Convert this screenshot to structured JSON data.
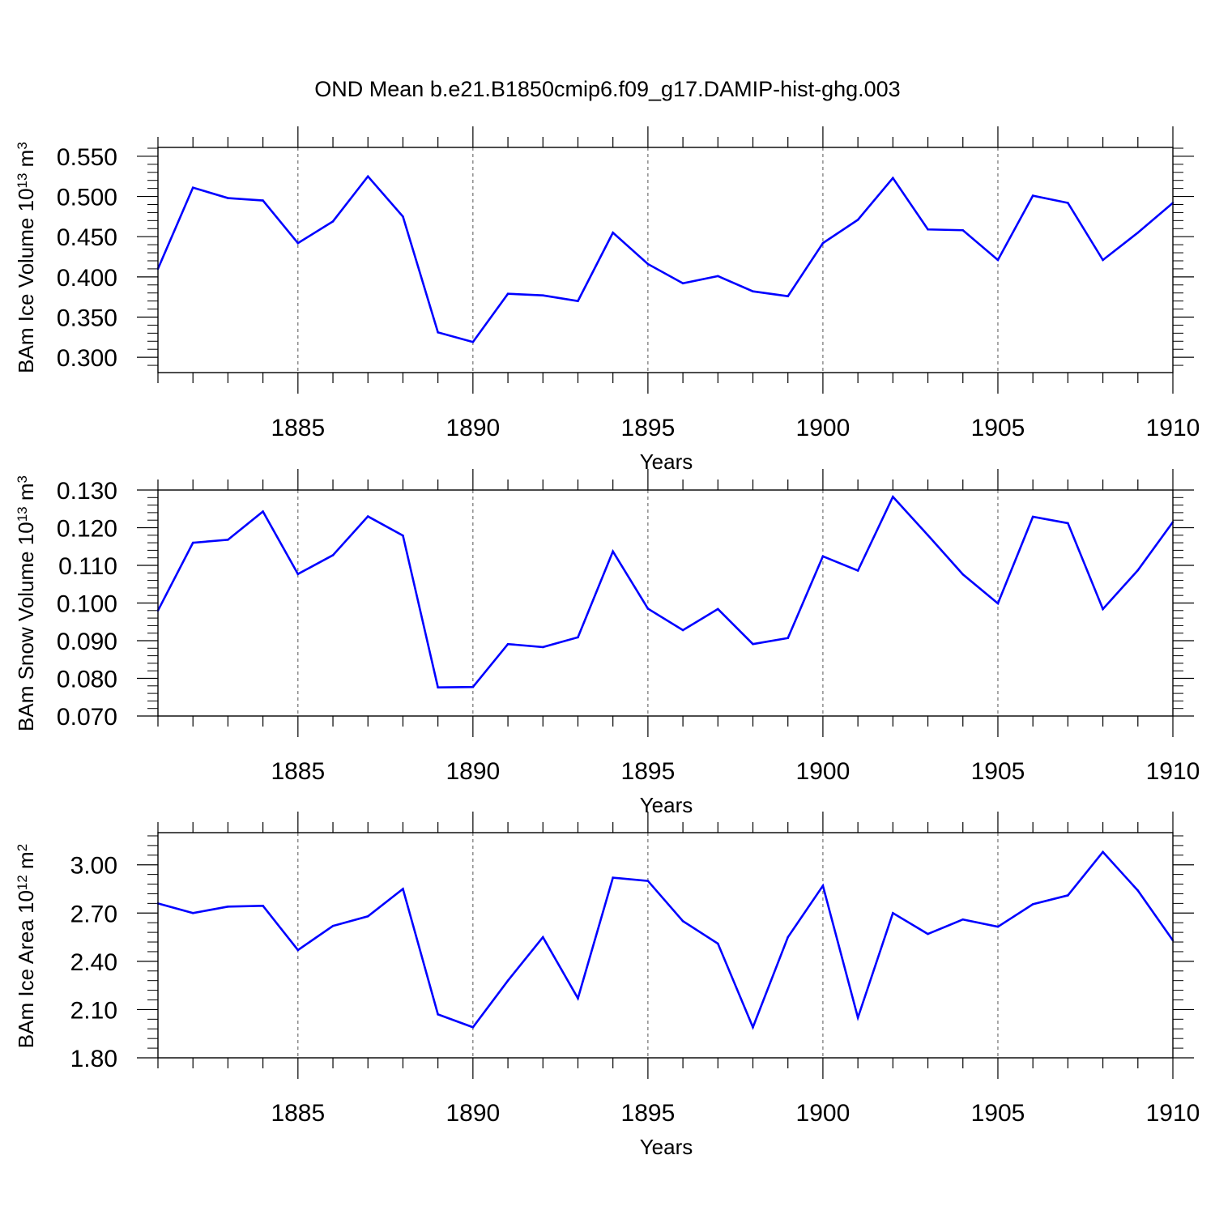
{
  "title": "OND Mean b.e21.B1850cmip6.f09_g17.DAMIP-hist-ghg.003",
  "colors": {
    "line": "#0000ff",
    "axis": "#000000",
    "grid": "#555555"
  },
  "chart_data": [
    {
      "type": "line",
      "ylabel_main": "BAm Ice Volume 10",
      "ylabel_exp": "13",
      "ylabel_unit": " m",
      "ylabel_unit_exp": "3",
      "xlabel": "Years",
      "xlim": [
        1881,
        1910
      ],
      "ylim": [
        0.281,
        0.561
      ],
      "yticks": [
        0.3,
        0.35,
        0.4,
        0.45,
        0.5,
        0.55
      ],
      "ytick_labels": [
        "0.300",
        "0.350",
        "0.400",
        "0.450",
        "0.500",
        "0.550"
      ],
      "yminor_step": 0.01,
      "xticks": [
        1885,
        1890,
        1895,
        1900,
        1905,
        1910
      ],
      "xtick_labels": [
        "1885",
        "1890",
        "1895",
        "1900",
        "1905",
        "1910"
      ],
      "grid": "dashed vertical at major x ticks",
      "series": [
        {
          "name": "BAm Ice Volume",
          "x": [
            1881,
            1882,
            1883,
            1884,
            1885,
            1886,
            1887,
            1888,
            1889,
            1890,
            1891,
            1892,
            1893,
            1894,
            1895,
            1896,
            1897,
            1898,
            1899,
            1900,
            1901,
            1902,
            1903,
            1904,
            1905,
            1906,
            1907,
            1908,
            1909,
            1910
          ],
          "values": [
            0.41,
            0.511,
            0.498,
            0.495,
            0.442,
            0.469,
            0.525,
            0.475,
            0.331,
            0.319,
            0.379,
            0.377,
            0.37,
            0.455,
            0.416,
            0.392,
            0.401,
            0.382,
            0.376,
            0.442,
            0.471,
            0.523,
            0.459,
            0.458,
            0.421,
            0.501,
            0.492,
            0.421,
            0.455,
            0.492
          ]
        }
      ]
    },
    {
      "type": "line",
      "ylabel_main": "BAm Snow Volume 10",
      "ylabel_exp": "13",
      "ylabel_unit": " m",
      "ylabel_unit_exp": "3",
      "xlabel": "Years",
      "xlim": [
        1881,
        1910
      ],
      "ylim": [
        0.07,
        0.13
      ],
      "yticks": [
        0.07,
        0.08,
        0.09,
        0.1,
        0.11,
        0.12,
        0.13
      ],
      "ytick_labels": [
        "0.070",
        "0.080",
        "0.090",
        "0.100",
        "0.110",
        "0.120",
        "0.130"
      ],
      "yminor_step": 0.002,
      "xticks": [
        1885,
        1890,
        1895,
        1900,
        1905,
        1910
      ],
      "xtick_labels": [
        "1885",
        "1890",
        "1895",
        "1900",
        "1905",
        "1910"
      ],
      "grid": "dashed vertical at major x ticks",
      "series": [
        {
          "name": "BAm Snow Volume",
          "x": [
            1881,
            1882,
            1883,
            1884,
            1885,
            1886,
            1887,
            1888,
            1889,
            1890,
            1891,
            1892,
            1893,
            1894,
            1895,
            1896,
            1897,
            1898,
            1899,
            1900,
            1901,
            1902,
            1903,
            1904,
            1905,
            1906,
            1907,
            1908,
            1909,
            1910
          ],
          "values": [
            0.098,
            0.116,
            0.1168,
            0.1243,
            0.1077,
            0.1127,
            0.123,
            0.1179,
            0.0776,
            0.0777,
            0.0891,
            0.0883,
            0.0909,
            0.1137,
            0.0985,
            0.0928,
            0.0984,
            0.0891,
            0.0907,
            0.1124,
            0.1086,
            0.1282,
            0.118,
            0.1076,
            0.0999,
            0.1229,
            0.1212,
            0.0984,
            0.1087,
            0.1215
          ]
        }
      ]
    },
    {
      "type": "line",
      "ylabel_main": "BAm Ice Area 10",
      "ylabel_exp": "12",
      "ylabel_unit": " m",
      "ylabel_unit_exp": "2",
      "xlabel": "Years",
      "xlim": [
        1881,
        1910
      ],
      "ylim": [
        1.8,
        3.2
      ],
      "yticks": [
        1.8,
        2.1,
        2.4,
        2.7,
        3.0
      ],
      "ytick_labels": [
        "1.80",
        "2.10",
        "2.40",
        "2.70",
        "3.00"
      ],
      "yminor_step": 0.06,
      "xticks": [
        1885,
        1890,
        1895,
        1900,
        1905,
        1910
      ],
      "xtick_labels": [
        "1885",
        "1890",
        "1895",
        "1900",
        "1905",
        "1910"
      ],
      "grid": "dashed vertical at major x ticks",
      "series": [
        {
          "name": "BAm Ice Area",
          "x": [
            1881,
            1882,
            1883,
            1884,
            1885,
            1886,
            1887,
            1888,
            1889,
            1890,
            1891,
            1892,
            1893,
            1894,
            1895,
            1896,
            1897,
            1898,
            1899,
            1900,
            1901,
            1902,
            1903,
            1904,
            1905,
            1906,
            1907,
            1908,
            1909,
            1910
          ],
          "values": [
            2.76,
            2.7,
            2.74,
            2.745,
            2.47,
            2.62,
            2.68,
            2.85,
            2.07,
            1.99,
            2.28,
            2.55,
            2.17,
            2.92,
            2.9,
            2.65,
            2.51,
            1.99,
            2.55,
            2.87,
            2.05,
            2.7,
            2.57,
            2.66,
            2.615,
            2.755,
            2.81,
            3.08,
            2.84,
            2.53
          ]
        }
      ]
    }
  ]
}
